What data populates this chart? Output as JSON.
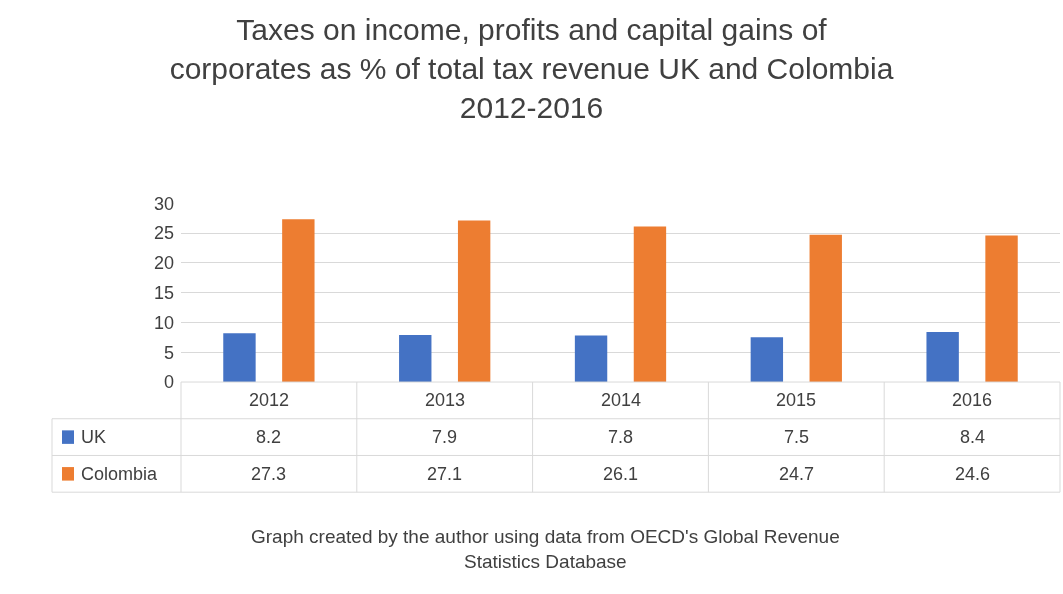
{
  "chart_data": {
    "type": "bar",
    "title": "Taxes on income, profits and capital gains of\ncorporates as % of total tax revenue UK and Colombia\n2012-2016",
    "categories": [
      "2012",
      "2013",
      "2014",
      "2015",
      "2016"
    ],
    "series": [
      {
        "name": "UK",
        "color": "#4472c4",
        "values": [
          8.2,
          7.9,
          7.8,
          7.5,
          8.4
        ]
      },
      {
        "name": "Colombia",
        "color": "#ed7d31",
        "values": [
          27.3,
          27.1,
          26.1,
          24.7,
          24.6
        ]
      }
    ],
    "ylim": [
      0,
      30
    ],
    "yticks": [
      0,
      5,
      10,
      15,
      20,
      25,
      30
    ],
    "grid": "y",
    "data_labels": true,
    "legend": "bottom left",
    "annotations": [
      "Graph created by the author using data from OECD's Global Revenue\nStatistics Database"
    ]
  }
}
